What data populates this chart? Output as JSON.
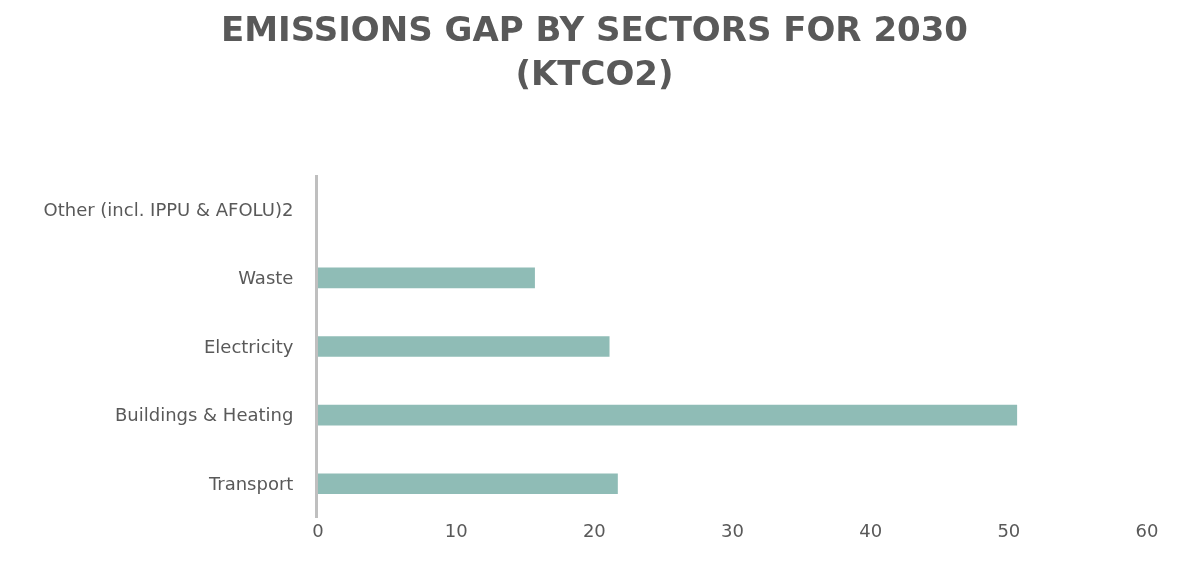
{
  "chart_data": {
    "type": "bar",
    "orientation": "horizontal",
    "title": "EMISSIONS GAP BY SECTORS FOR 2030 (KTCO2)",
    "categories": [
      "Other (incl. IPPU & AFOLU)2",
      "Waste",
      "Electricity",
      "Buildings & Heating",
      "Transport"
    ],
    "values": [
      0,
      15.7,
      21.1,
      50.6,
      21.7
    ],
    "color": "#8fbcb6",
    "xlim": [
      0,
      60
    ],
    "xticks": [
      0,
      10,
      20,
      30,
      40,
      50,
      60
    ],
    "legend": false
  }
}
